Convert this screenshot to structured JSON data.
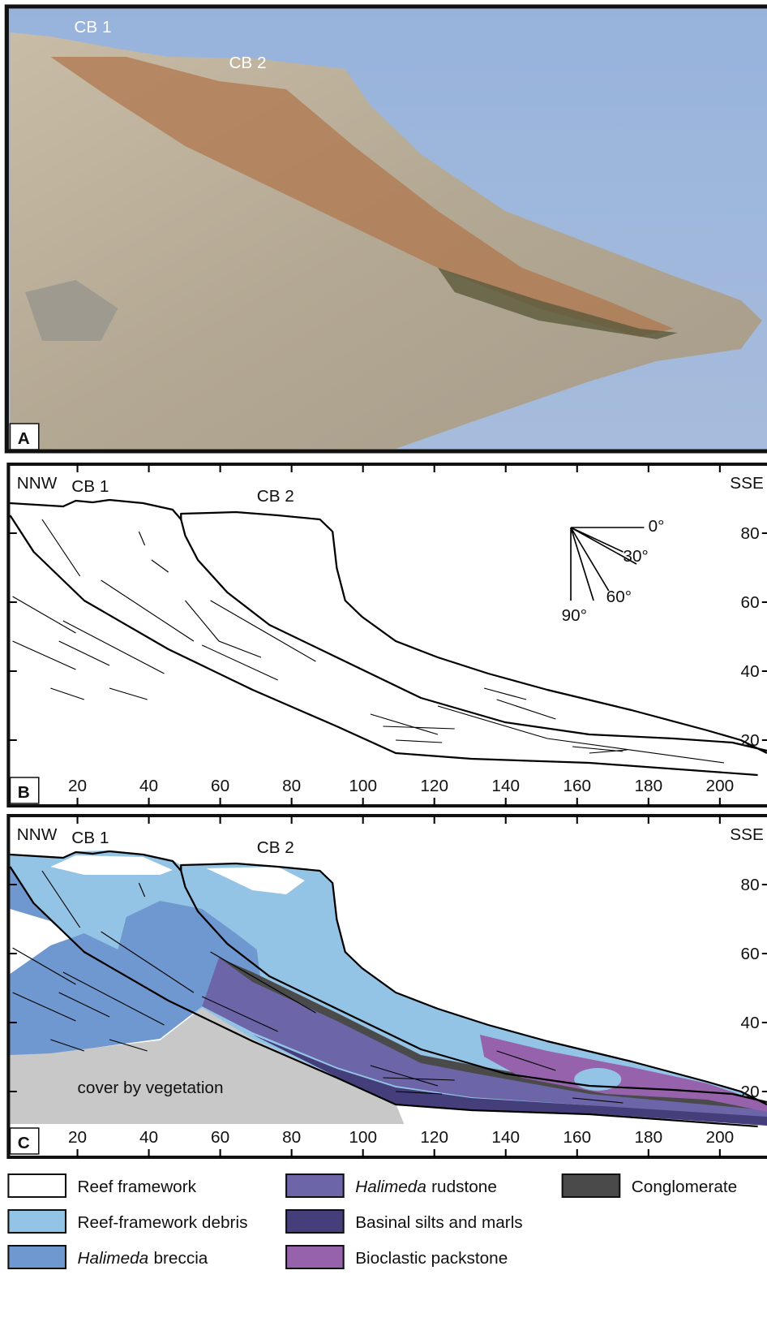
{
  "panel_a": {
    "label": "A",
    "annotations": [
      "CB 1",
      "CB 2"
    ]
  },
  "panel_b": {
    "label": "B",
    "left": "NNW",
    "right": "SSE",
    "annotations": [
      "CB 1",
      "CB 2"
    ],
    "dip_labels": [
      "0°",
      "30°",
      "60°",
      "90°"
    ],
    "xticks": [
      20,
      40,
      60,
      80,
      100,
      120,
      140,
      160,
      180,
      200
    ],
    "yticks": [
      20,
      40,
      60,
      80
    ]
  },
  "panel_c": {
    "label": "C",
    "left": "NNW",
    "right": "SSE",
    "annotations": [
      "CB 1",
      "CB 2",
      "cover by vegetation"
    ],
    "xticks": [
      20,
      40,
      60,
      80,
      100,
      120,
      140,
      160,
      180,
      200
    ],
    "yticks": [
      20,
      40,
      60,
      80
    ]
  },
  "legend": [
    {
      "text": "Reef framework",
      "color": "#ffffff"
    },
    {
      "text": "Reef-framework debris",
      "color": "#93c4e5"
    },
    {
      "italic": "Halimeda",
      "text": "breccia",
      "color": "#6f98d0"
    },
    {
      "italic": "Halimeda",
      "text": "rudstone",
      "color": "#6c66a9"
    },
    {
      "text": "Basinal silts and marls",
      "color": "#443e7b"
    },
    {
      "text": "Bioclastic packstone",
      "color": "#9562ab"
    },
    {
      "text": "Conglomerate",
      "color": "#4a4a4a"
    }
  ]
}
